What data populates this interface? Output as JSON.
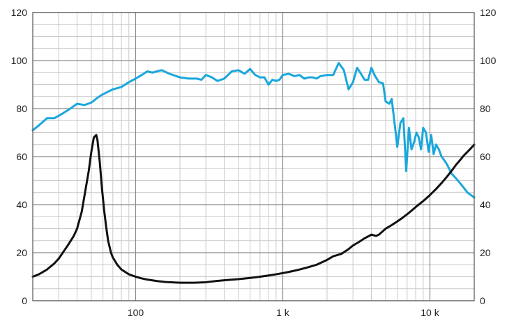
{
  "chart_data": {
    "type": "line",
    "xscale": "log",
    "xlim": [
      20,
      20000
    ],
    "ylim": [
      0,
      120
    ],
    "ytick_values": [
      0,
      20,
      40,
      60,
      80,
      100,
      120
    ],
    "ytick_labels": [
      "0",
      "20",
      "40",
      "60",
      "80",
      "100",
      "120"
    ],
    "xtick_values": [
      100,
      1000,
      10000
    ],
    "xtick_labels": [
      "100",
      "1 k",
      "10 k"
    ],
    "grid": true,
    "series": [
      {
        "color": "#1aa7dc",
        "x": [
          20,
          22,
          25,
          28,
          32,
          36,
          40,
          45,
          50,
          55,
          60,
          70,
          80,
          90,
          100,
          110,
          120,
          130,
          150,
          170,
          200,
          230,
          260,
          280,
          300,
          330,
          360,
          400,
          450,
          500,
          550,
          600,
          650,
          700,
          750,
          800,
          850,
          900,
          950,
          1000,
          1100,
          1200,
          1300,
          1400,
          1500,
          1600,
          1700,
          1800,
          2000,
          2200,
          2400,
          2600,
          2800,
          3000,
          3200,
          3400,
          3600,
          3800,
          4000,
          4200,
          4500,
          4800,
          5000,
          5300,
          5500,
          5800,
          6000,
          6300,
          6600,
          6900,
          7200,
          7500,
          7800,
          8100,
          8400,
          8700,
          9000,
          9400,
          9800,
          10200,
          10600,
          11000,
          11500,
          12000,
          12500,
          13000,
          13500,
          14000,
          14500,
          15000,
          15500,
          16000,
          16500,
          17000,
          17500,
          18000,
          19000,
          20000
        ],
        "values": [
          71,
          73,
          76,
          76,
          78,
          80,
          82,
          81.5,
          82.5,
          84.5,
          86,
          88,
          89,
          91,
          92.5,
          94,
          95.5,
          95,
          96,
          94.5,
          93,
          92.5,
          92.5,
          92,
          94,
          93,
          91.5,
          92.5,
          95.5,
          96,
          94.5,
          96.5,
          94,
          93,
          93,
          90,
          92,
          91.5,
          92,
          94,
          94.5,
          93.5,
          94,
          92.5,
          93,
          93,
          92.5,
          93.5,
          94,
          94,
          99,
          96,
          88,
          91,
          97,
          94.5,
          92,
          92,
          97,
          94,
          91,
          90.5,
          83,
          82,
          84,
          72,
          64,
          74,
          76,
          54,
          72,
          63,
          66,
          70,
          68,
          63,
          72,
          70,
          62,
          69,
          61,
          65,
          63,
          60,
          58.5,
          57,
          55,
          53,
          52,
          51,
          50,
          49,
          48,
          47,
          46,
          45,
          44,
          43
        ]
      },
      {
        "color": "#111111",
        "x": [
          20,
          22,
          25,
          28,
          30,
          32,
          35,
          38,
          40,
          43,
          45,
          48,
          50,
          52,
          54,
          55,
          57,
          59,
          61,
          63,
          65,
          68,
          70,
          75,
          80,
          90,
          100,
          110,
          120,
          140,
          160,
          200,
          250,
          300,
          350,
          400,
          500,
          600,
          700,
          800,
          900,
          1000,
          1100,
          1200,
          1300,
          1500,
          1700,
          2000,
          2200,
          2500,
          2800,
          3000,
          3300,
          3600,
          4000,
          4300,
          4500,
          5000,
          5500,
          6000,
          6500,
          7000,
          7500,
          8000,
          9000,
          10000,
          11000,
          12000,
          13000,
          14000,
          15000,
          16000,
          17000,
          18000,
          19000,
          20000
        ],
        "values": [
          10,
          11,
          13,
          15.5,
          17.5,
          20,
          23.5,
          27,
          30,
          37,
          44,
          54,
          62,
          68,
          69,
          67,
          58,
          47,
          38,
          31,
          25,
          20,
          18,
          15,
          13,
          11,
          10,
          9.3,
          8.8,
          8.2,
          7.8,
          7.5,
          7.5,
          7.7,
          8.2,
          8.5,
          9,
          9.5,
          10,
          10.5,
          11,
          11.5,
          12,
          12.5,
          13,
          14,
          15,
          17,
          18.5,
          19.5,
          21.5,
          23,
          24.5,
          26,
          27.5,
          27,
          27.5,
          30,
          31.5,
          33,
          34.5,
          36,
          37.5,
          39,
          41.5,
          44,
          46.5,
          49,
          51.5,
          54,
          56.5,
          58.5,
          60.5,
          62,
          63.5,
          65
        ]
      }
    ]
  }
}
